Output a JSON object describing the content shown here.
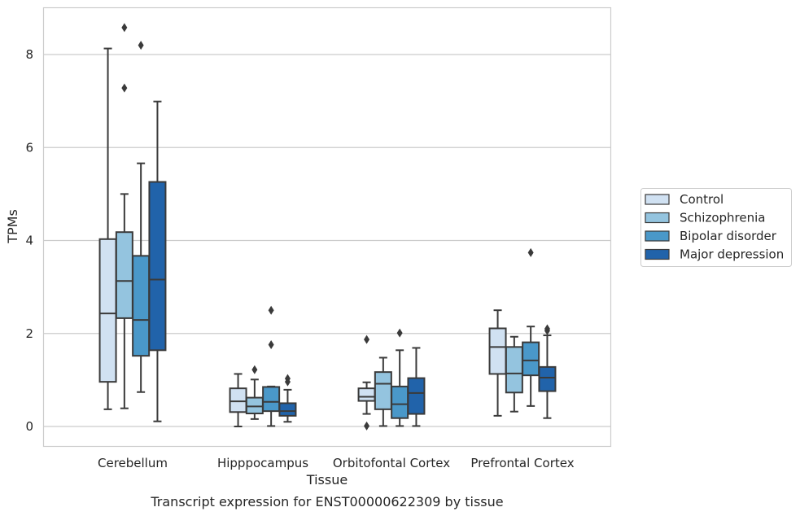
{
  "chart_data": {
    "type": "box",
    "caption": "Transcript expression for ENST00000622309 by tissue",
    "xlabel": "Tissue",
    "ylabel": "TPMs",
    "ylim": [
      -0.4,
      9.0
    ],
    "yticks": [
      0,
      2,
      4,
      6,
      8
    ],
    "grid": "horizontal",
    "legend_position": "outside-right",
    "categories": [
      "Cerebellum",
      "Hipppocampus",
      "Orbitofontal Cortex",
      "Prefrontal Cortex"
    ],
    "series": [
      {
        "name": "Control",
        "color": "#d0e1f2",
        "boxes": [
          {
            "whisker_low": 0.37,
            "q1": 0.96,
            "median": 2.43,
            "q3": 4.03,
            "whisker_high": 8.13,
            "outliers": []
          },
          {
            "whisker_low": 0.0,
            "q1": 0.31,
            "median": 0.54,
            "q3": 0.82,
            "whisker_high": 1.13,
            "outliers": []
          },
          {
            "whisker_low": 0.27,
            "q1": 0.55,
            "median": 0.64,
            "q3": 0.82,
            "whisker_high": 0.95,
            "outliers": [
              1.87,
              0.01
            ]
          },
          {
            "whisker_low": 0.23,
            "q1": 1.13,
            "median": 1.71,
            "q3": 2.11,
            "whisker_high": 2.5,
            "outliers": []
          }
        ]
      },
      {
        "name": "Schizophrenia",
        "color": "#94c4df",
        "boxes": [
          {
            "whisker_low": 0.39,
            "q1": 2.33,
            "median": 3.13,
            "q3": 4.18,
            "whisker_high": 5.0,
            "outliers": [
              8.58,
              7.28
            ]
          },
          {
            "whisker_low": 0.16,
            "q1": 0.28,
            "median": 0.43,
            "q3": 0.62,
            "whisker_high": 1.01,
            "outliers": [
              1.22
            ]
          },
          {
            "whisker_low": 0.01,
            "q1": 0.37,
            "median": 0.92,
            "q3": 1.17,
            "whisker_high": 1.48,
            "outliers": []
          },
          {
            "whisker_low": 0.32,
            "q1": 0.73,
            "median": 1.14,
            "q3": 1.71,
            "whisker_high": 1.93,
            "outliers": []
          }
        ]
      },
      {
        "name": "Bipolar disorder",
        "color": "#4a98c9",
        "boxes": [
          {
            "whisker_low": 0.74,
            "q1": 1.52,
            "median": 2.29,
            "q3": 3.67,
            "whisker_high": 5.66,
            "outliers": [
              8.2
            ]
          },
          {
            "whisker_low": 0.01,
            "q1": 0.33,
            "median": 0.53,
            "q3": 0.85,
            "whisker_high": 0.86,
            "outliers": [
              2.5,
              1.76
            ]
          },
          {
            "whisker_low": 0.01,
            "q1": 0.18,
            "median": 0.48,
            "q3": 0.86,
            "whisker_high": 1.64,
            "outliers": [
              2.01
            ]
          },
          {
            "whisker_low": 0.44,
            "q1": 1.1,
            "median": 1.42,
            "q3": 1.81,
            "whisker_high": 2.15,
            "outliers": [
              3.74
            ]
          }
        ]
      },
      {
        "name": "Major depression",
        "color": "#2163aa",
        "boxes": [
          {
            "whisker_low": 0.11,
            "q1": 1.64,
            "median": 3.16,
            "q3": 5.26,
            "whisker_high": 6.99,
            "outliers": []
          },
          {
            "whisker_low": 0.1,
            "q1": 0.23,
            "median": 0.33,
            "q3": 0.5,
            "whisker_high": 0.79,
            "outliers": [
              1.03,
              0.96
            ]
          },
          {
            "whisker_low": 0.01,
            "q1": 0.27,
            "median": 0.72,
            "q3": 1.04,
            "whisker_high": 1.69,
            "outliers": []
          },
          {
            "whisker_low": 0.18,
            "q1": 0.76,
            "median": 1.05,
            "q3": 1.28,
            "whisker_high": 1.96,
            "outliers": [
              2.1,
              2.06
            ]
          }
        ]
      }
    ]
  }
}
